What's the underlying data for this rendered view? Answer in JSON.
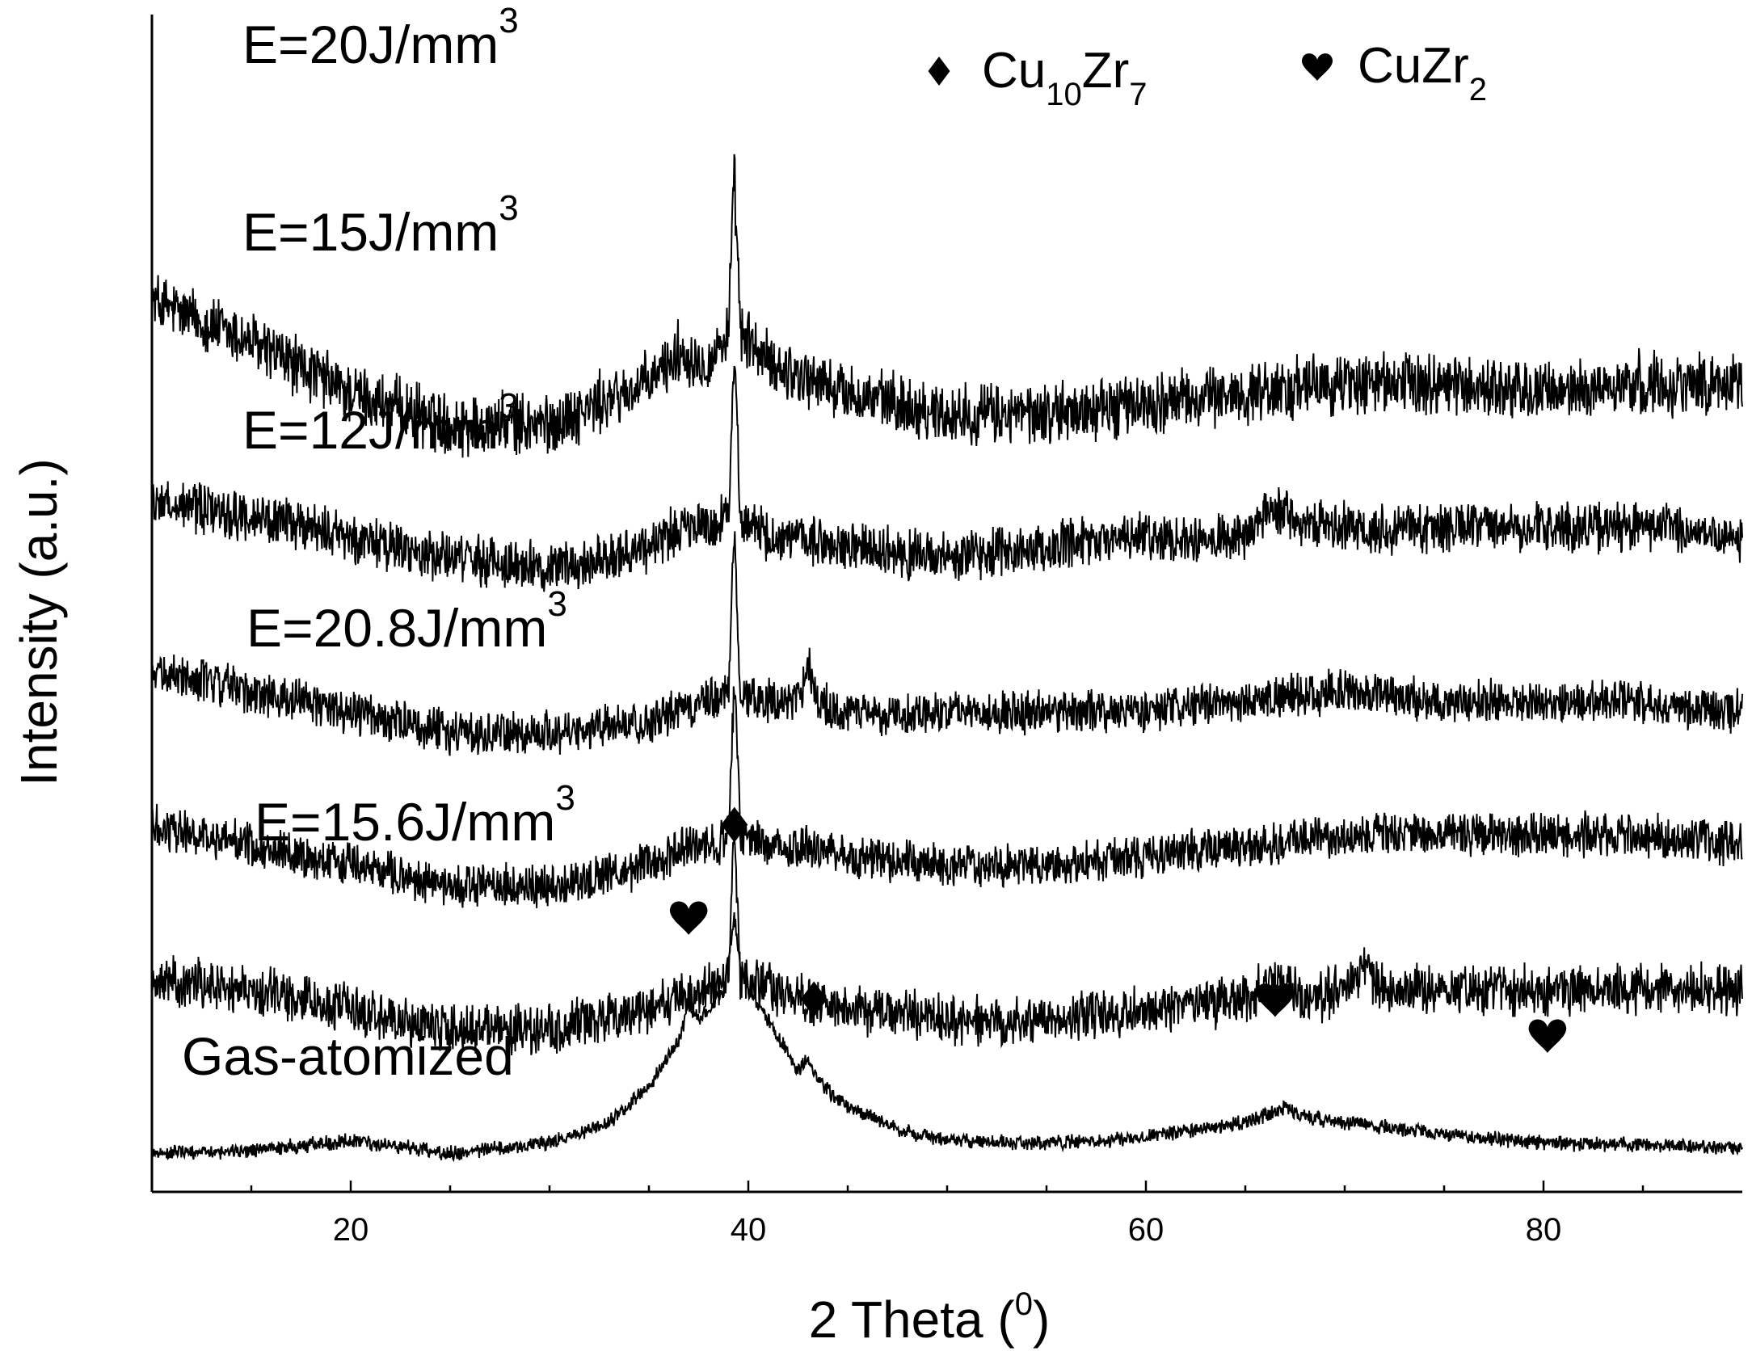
{
  "chart_data": {
    "type": "line",
    "title": "",
    "xlabel": "2 Theta (",
    "xlabel_sup": "0",
    "xlabel_tail": ")",
    "ylabel": "Intensity (a.u.)",
    "xlim": [
      10,
      90
    ],
    "xticks": [
      20,
      40,
      60,
      80
    ],
    "xtick_labels": [
      "20",
      "40",
      "60",
      "80"
    ],
    "y_tick_labels": "none",
    "grid": false,
    "legend_position": "top-right",
    "legend": [
      {
        "marker": "diamond",
        "parts": [
          {
            "t": "Cu",
            "k": "n"
          },
          {
            "t": "10",
            "k": "sub"
          },
          {
            "t": "Zr",
            "k": "n"
          },
          {
            "t": "7",
            "k": "sub"
          }
        ]
      },
      {
        "marker": "heart",
        "parts": [
          {
            "t": "CuZr",
            "k": "n"
          },
          {
            "t": "2",
            "k": "sub"
          }
        ]
      }
    ],
    "series": [
      {
        "name": "E=20J/mm3",
        "label_main": "E=20J/mm",
        "label_sup": "3",
        "x": [
          10,
          15,
          20,
          25,
          30,
          35,
          36.5,
          38,
          39,
          39.3,
          39.6,
          41,
          45,
          50,
          55,
          60,
          65,
          70,
          75,
          80,
          85,
          90
        ],
        "y": [
          0.83,
          0.79,
          0.74,
          0.71,
          0.71,
          0.75,
          0.78,
          0.77,
          0.8,
          0.95,
          0.8,
          0.77,
          0.74,
          0.72,
          0.72,
          0.73,
          0.74,
          0.75,
          0.75,
          0.74,
          0.75,
          0.75
        ],
        "noise": 0.05
      },
      {
        "name": "E=15J/mm3",
        "label_main": "E=15J/mm",
        "label_sup": "3",
        "x": [
          10,
          15,
          20,
          25,
          30,
          35,
          36.5,
          38,
          39,
          39.3,
          39.6,
          41,
          45,
          50,
          55,
          60,
          65,
          66.5,
          68,
          70,
          75,
          80,
          85,
          90
        ],
        "y": [
          0.635,
          0.62,
          0.6,
          0.58,
          0.57,
          0.59,
          0.61,
          0.61,
          0.62,
          0.79,
          0.62,
          0.6,
          0.59,
          0.58,
          0.59,
          0.6,
          0.6,
          0.63,
          0.61,
          0.61,
          0.61,
          0.61,
          0.61,
          0.6
        ],
        "noise": 0.04
      },
      {
        "name": "E=12J/mm3",
        "label_main": "E=12J/mm",
        "label_sup": "3",
        "x": [
          10,
          15,
          20,
          25,
          30,
          35,
          38,
          39,
          39.3,
          39.6,
          41,
          42.5,
          43,
          43.5,
          45,
          50,
          55,
          60,
          65,
          70,
          75,
          80,
          85,
          90
        ],
        "y": [
          0.47,
          0.45,
          0.43,
          0.41,
          0.41,
          0.42,
          0.44,
          0.45,
          0.61,
          0.45,
          0.44,
          0.44,
          0.48,
          0.44,
          0.43,
          0.43,
          0.43,
          0.43,
          0.44,
          0.45,
          0.44,
          0.44,
          0.44,
          0.43
        ],
        "noise": 0.035
      },
      {
        "name": "E=20.8J/mm3",
        "label_main": "E=20.8J/mm",
        "label_sup": "3",
        "x": [
          10,
          15,
          20,
          25,
          30,
          35,
          37,
          38.5,
          39,
          39.3,
          39.6,
          41,
          43,
          45,
          50,
          55,
          60,
          65,
          70,
          75,
          80,
          85,
          90
        ],
        "y": [
          0.32,
          0.3,
          0.28,
          0.26,
          0.26,
          0.28,
          0.3,
          0.3,
          0.31,
          0.46,
          0.31,
          0.3,
          0.3,
          0.29,
          0.28,
          0.28,
          0.29,
          0.3,
          0.31,
          0.31,
          0.31,
          0.31,
          0.3
        ],
        "noise": 0.035
      },
      {
        "name": "E=15.6J/mm3",
        "label_main": "E=15.6J/mm",
        "label_sup": "3",
        "x": [
          10,
          15,
          20,
          25,
          30,
          35,
          38,
          39,
          39.3,
          39.6,
          41,
          45,
          50,
          55,
          60,
          65,
          66.5,
          68,
          70,
          71,
          72,
          75,
          80,
          85,
          90
        ],
        "y": [
          0.17,
          0.16,
          0.14,
          0.12,
          0.12,
          0.14,
          0.16,
          0.17,
          0.32,
          0.17,
          0.16,
          0.14,
          0.13,
          0.13,
          0.14,
          0.15,
          0.17,
          0.15,
          0.16,
          0.18,
          0.16,
          0.16,
          0.16,
          0.16,
          0.16
        ],
        "noise": 0.04
      },
      {
        "name": "Gas-atomized",
        "label_main": "Gas-atomized",
        "label_sup": "",
        "x": [
          10,
          15,
          20,
          25,
          30,
          33,
          35,
          36.5,
          37,
          37.5,
          38,
          38.8,
          39.1,
          39.3,
          39.6,
          40,
          41,
          42.5,
          43,
          43.5,
          45,
          48,
          50,
          55,
          60,
          65,
          66.5,
          67,
          68,
          70,
          75,
          80,
          85,
          90
        ],
        "y": [
          0.0,
          0.003,
          0.012,
          0.0,
          0.01,
          0.03,
          0.065,
          0.11,
          0.145,
          0.13,
          0.14,
          0.16,
          0.2,
          0.23,
          0.18,
          0.16,
          0.13,
          0.08,
          0.095,
          0.07,
          0.045,
          0.02,
          0.012,
          0.01,
          0.015,
          0.03,
          0.04,
          0.045,
          0.035,
          0.03,
          0.018,
          0.01,
          0.008,
          0.005
        ],
        "noise": 0.012
      }
    ],
    "phase_markers": [
      {
        "symbol": "heart",
        "x": 37,
        "y": 0.23
      },
      {
        "symbol": "diamond",
        "x": 39.3,
        "y": 0.32
      },
      {
        "symbol": "diamond",
        "x": 43.3,
        "y": 0.15
      },
      {
        "symbol": "heart",
        "x": 66.5,
        "y": 0.15
      },
      {
        "symbol": "heart",
        "x": 80.2,
        "y": 0.115
      }
    ]
  }
}
